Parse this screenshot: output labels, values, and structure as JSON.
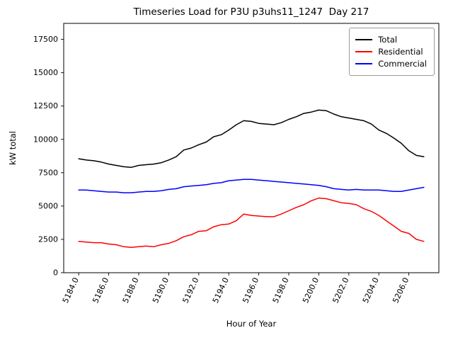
{
  "chart_data": {
    "type": "line",
    "title": "Timeseries Load for P3U p3uhs11_1247  Day 217",
    "xlabel": "Hour of Year",
    "ylabel": "kW total",
    "xlim": [
      5183,
      5208
    ],
    "ylim": [
      0,
      18700
    ],
    "xticks": [
      5184,
      5186,
      5188,
      5190,
      5192,
      5194,
      5196,
      5198,
      5200,
      5202,
      5204,
      5206
    ],
    "xtick_labels": [
      "5184.0",
      "5186.0",
      "5188.0",
      "5190.0",
      "5192.0",
      "5194.0",
      "5196.0",
      "5198.0",
      "5200.0",
      "5202.0",
      "5204.0",
      "5206.0"
    ],
    "yticks": [
      0,
      2500,
      5000,
      7500,
      10000,
      12500,
      15000,
      17500
    ],
    "ytick_labels": [
      "0",
      "2500",
      "5000",
      "7500",
      "10000",
      "12500",
      "15000",
      "17500"
    ],
    "legend_position": "upper right",
    "grid": false,
    "x": [
      5184,
      5184.5,
      5185,
      5185.5,
      5186,
      5186.5,
      5187,
      5187.5,
      5188,
      5188.5,
      5189,
      5189.5,
      5190,
      5190.5,
      5191,
      5191.5,
      5192,
      5192.5,
      5193,
      5193.5,
      5194,
      5194.5,
      5195,
      5195.5,
      5196,
      5196.5,
      5197,
      5197.5,
      5198,
      5198.5,
      5199,
      5199.5,
      5200,
      5200.5,
      5201,
      5201.5,
      5202,
      5202.5,
      5203,
      5203.5,
      5204,
      5204.5,
      5205,
      5205.5,
      5206,
      5206.5,
      5207
    ],
    "series": [
      {
        "name": "Total",
        "color": "#000000",
        "values": [
          8550,
          8450,
          8400,
          8300,
          8150,
          8050,
          7950,
          7900,
          8050,
          8100,
          8150,
          8250,
          8450,
          8700,
          9200,
          9350,
          9600,
          9800,
          10200,
          10350,
          10700,
          11100,
          11400,
          11350,
          11200,
          11150,
          11100,
          11250,
          11500,
          11700,
          11950,
          12050,
          12200,
          12150,
          11900,
          11700,
          11600,
          11500,
          11400,
          11150,
          10700,
          10450,
          10100,
          9700,
          9150,
          8800,
          8700
        ]
      },
      {
        "name": "Residential",
        "color": "#ff0000",
        "values": [
          2350,
          2300,
          2250,
          2250,
          2150,
          2100,
          1950,
          1900,
          1950,
          2000,
          1950,
          2100,
          2200,
          2400,
          2700,
          2850,
          3100,
          3150,
          3450,
          3600,
          3650,
          3900,
          4400,
          4300,
          4250,
          4200,
          4200,
          4400,
          4650,
          4900,
          5100,
          5400,
          5600,
          5550,
          5400,
          5250,
          5200,
          5100,
          4800,
          4600,
          4300,
          3900,
          3500,
          3100,
          2950,
          2500,
          2350
        ]
      },
      {
        "name": "Commercial",
        "color": "#0000ff",
        "values": [
          6200,
          6200,
          6150,
          6100,
          6050,
          6050,
          6000,
          6000,
          6050,
          6100,
          6100,
          6150,
          6250,
          6300,
          6450,
          6500,
          6550,
          6600,
          6700,
          6750,
          6900,
          6950,
          7000,
          7000,
          6950,
          6900,
          6850,
          6800,
          6750,
          6700,
          6650,
          6600,
          6550,
          6450,
          6300,
          6250,
          6200,
          6250,
          6200,
          6200,
          6200,
          6150,
          6100,
          6100,
          6200,
          6300,
          6400
        ]
      }
    ]
  }
}
